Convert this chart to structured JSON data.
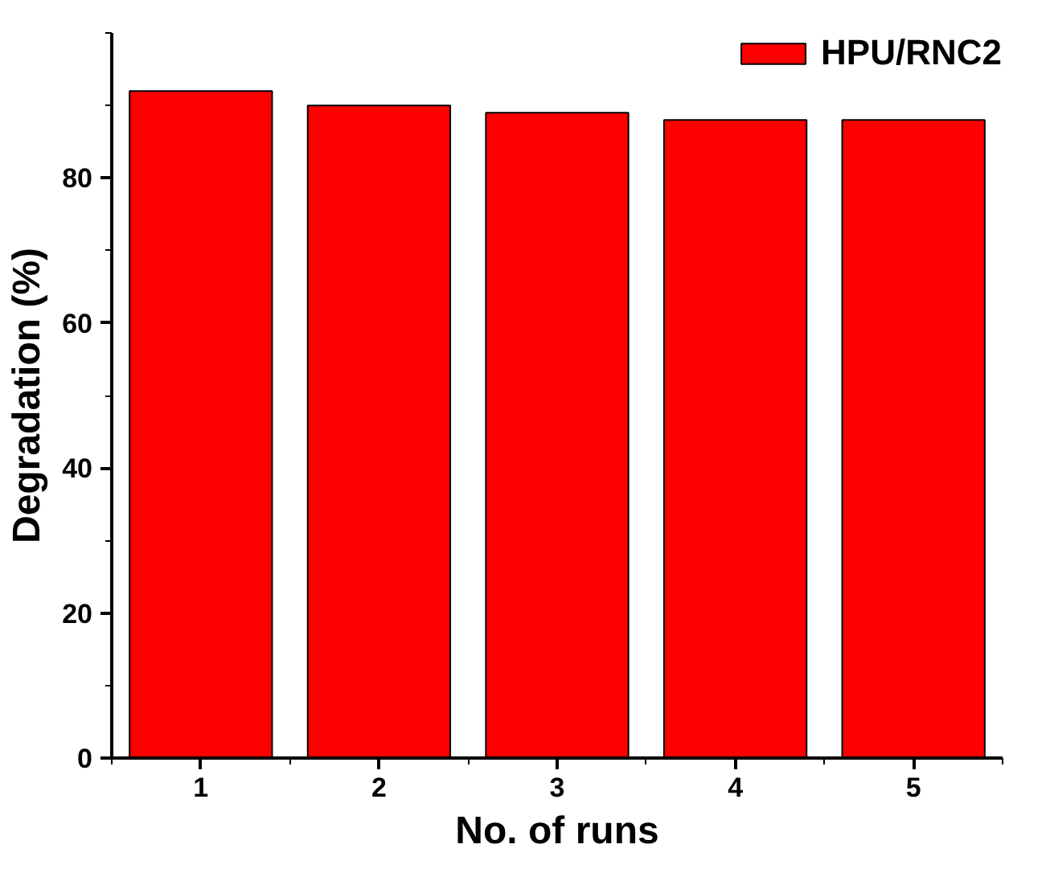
{
  "chart_data": {
    "type": "bar",
    "xlabel": "No. of runs",
    "ylabel": "Degradation (%)",
    "categories": [
      "1",
      "2",
      "3",
      "4",
      "5"
    ],
    "series": [
      {
        "name": "HPU/RNC2",
        "color": "#ff0000",
        "values": [
          92,
          90,
          89,
          88,
          88
        ]
      }
    ],
    "ylim": [
      0,
      100
    ],
    "yticks": [
      0,
      20,
      40,
      60,
      80
    ],
    "grid": false,
    "legend": "top right"
  }
}
